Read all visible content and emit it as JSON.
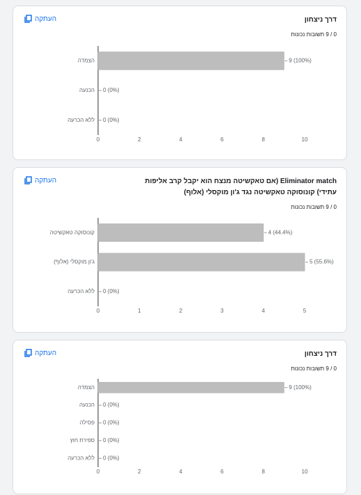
{
  "chart_data": [
    {
      "type": "barh",
      "title": "דרך ניצחון",
      "subtitle": "0 / 9 תשובות נכונות",
      "button": "העתקה",
      "categories": [
        "הצמדה",
        "הכנעה",
        "ללא הכרעה"
      ],
      "values": [
        9,
        0,
        0
      ],
      "value_labels": [
        "9 (100%)",
        "0 (0%)",
        "0 (0%)"
      ],
      "color": "#bdbdbd",
      "xlim": [
        0,
        10
      ],
      "xticks": [
        0,
        2,
        4,
        6,
        8,
        10
      ],
      "grid": false
    },
    {
      "type": "barh",
      "title": "Eliminator match (אם טאקשיטה מנצח הוא יקבל קרב אליפות עתידי) קונוסוקה טאקשיטה נגד ג'ון מוקסלי (אלוף)",
      "subtitle": "0 / 9 תשובות נכונות",
      "button": "העתקה",
      "categories": [
        "קונוסוקה טאקשיטה",
        "ג'ון מוקסלי (אלוף)",
        "ללא הכרעה"
      ],
      "values": [
        4,
        5,
        0
      ],
      "value_labels": [
        "4 (44.4%)",
        "5 (55.6%)",
        "0 (0%)"
      ],
      "color": "#bdbdbd",
      "xlim": [
        0,
        5
      ],
      "xticks": [
        0,
        1,
        2,
        3,
        4,
        5
      ],
      "grid": false
    },
    {
      "type": "barh",
      "title": "דרך ניצחון",
      "subtitle": "0 / 9 תשובות נכונות",
      "button": "העתקה",
      "categories": [
        "הצמדה",
        "הכנעה",
        "פסילה",
        "ספירת חוץ",
        "ללא הכרעה"
      ],
      "values": [
        9,
        0,
        0,
        0,
        0
      ],
      "value_labels": [
        "9 (100%)",
        "0 (0%)",
        "0 (0%)",
        "0 (0%)",
        "0 (0%)"
      ],
      "color": "#bdbdbd",
      "xlim": [
        0,
        10
      ],
      "xticks": [
        0,
        2,
        4,
        6,
        8,
        10
      ],
      "grid": false
    }
  ]
}
